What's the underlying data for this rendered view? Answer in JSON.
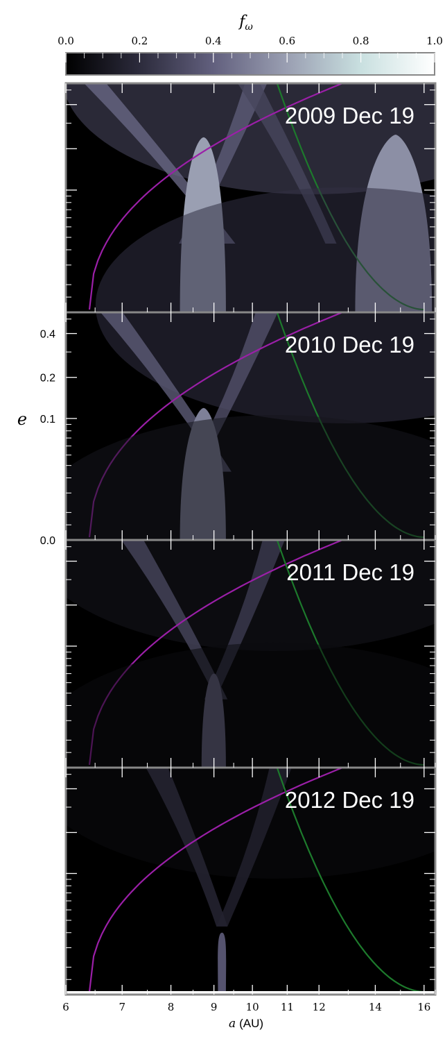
{
  "colorbar": {
    "label_symbol": "f",
    "label_subscript": "ω",
    "ticks": [
      "0.0",
      "0.2",
      "0.4",
      "0.6",
      "0.8",
      "1.0"
    ],
    "range": [
      0,
      1
    ],
    "colormap": [
      "#000000",
      "#2c2b3c",
      "#62607e",
      "#9a9fb2",
      "#c9e0e0",
      "#ffffff"
    ]
  },
  "chart_data": {
    "type": "heatmap",
    "title": "",
    "xlabel_italic": "a",
    "xlabel_unit": "(AU)",
    "ylabel": "e",
    "x_scale": "log",
    "xlim": [
      6,
      16.5
    ],
    "x_ticks": [
      "6",
      "7",
      "8",
      "9",
      "10",
      "11",
      "12",
      "14",
      "16"
    ],
    "y_scale": "log(e + 0.02)",
    "ylim": [
      0,
      0.52
    ],
    "y_ticks": [
      "0.0",
      "0.1",
      "0.2",
      "0.4"
    ],
    "curve_colors": {
      "magenta": "#9b1fa8",
      "green": "#1d7a2c"
    },
    "panels": [
      {
        "label": "2009 Dec 19",
        "lobes": [
          {
            "center_a": 8.75,
            "half_width_base": 0.55,
            "peak_e": 0.24,
            "value": 0.6
          },
          {
            "center_a": 14.8,
            "half_width_base": 1.55,
            "peak_e": 0.25,
            "value": 0.55
          }
        ],
        "bands": [
          {
            "from_a": 6.5,
            "to_a": 9.4,
            "value": 0.42
          },
          {
            "from_a": 10.1,
            "to_a": 8.3,
            "value": 0.38
          },
          {
            "from_a": 9.9,
            "to_a": 12.4,
            "value": 0.3
          }
        ],
        "haze": {
          "center_a": 10.5,
          "value": 0.32
        }
      },
      {
        "label": "2010 Dec 19",
        "lobes": [
          {
            "center_a": 8.75,
            "half_width_base": 0.55,
            "peak_e": 0.12,
            "value": 0.5
          }
        ],
        "bands": [
          {
            "from_a": 6.8,
            "to_a": 9.3,
            "value": 0.38
          },
          {
            "from_a": 10.4,
            "to_a": 8.5,
            "value": 0.34
          }
        ],
        "haze": {
          "center_a": 11.5,
          "value": 0.22
        }
      },
      {
        "label": "2011 Dec 19",
        "lobes": [
          {
            "center_a": 9.0,
            "half_width_base": 0.3,
            "peak_e": 0.06,
            "value": 0.42
          }
        ],
        "bands": [
          {
            "from_a": 7.2,
            "to_a": 9.2,
            "value": 0.3
          },
          {
            "from_a": 10.6,
            "to_a": 8.9,
            "value": 0.26
          }
        ],
        "haze": {
          "center_a": 9.5,
          "value": 0.1
        }
      },
      {
        "label": "2012 Dec 19",
        "lobes": [
          {
            "center_a": 9.2,
            "half_width_base": 0.1,
            "peak_e": 0.03,
            "value": 0.35
          }
        ],
        "bands": [
          {
            "from_a": 7.7,
            "to_a": 9.2,
            "value": 0.18
          },
          {
            "from_a": 10.8,
            "to_a": 9.2,
            "value": 0.16
          }
        ],
        "haze": {
          "center_a": 9.5,
          "value": 0.05
        }
      }
    ]
  }
}
